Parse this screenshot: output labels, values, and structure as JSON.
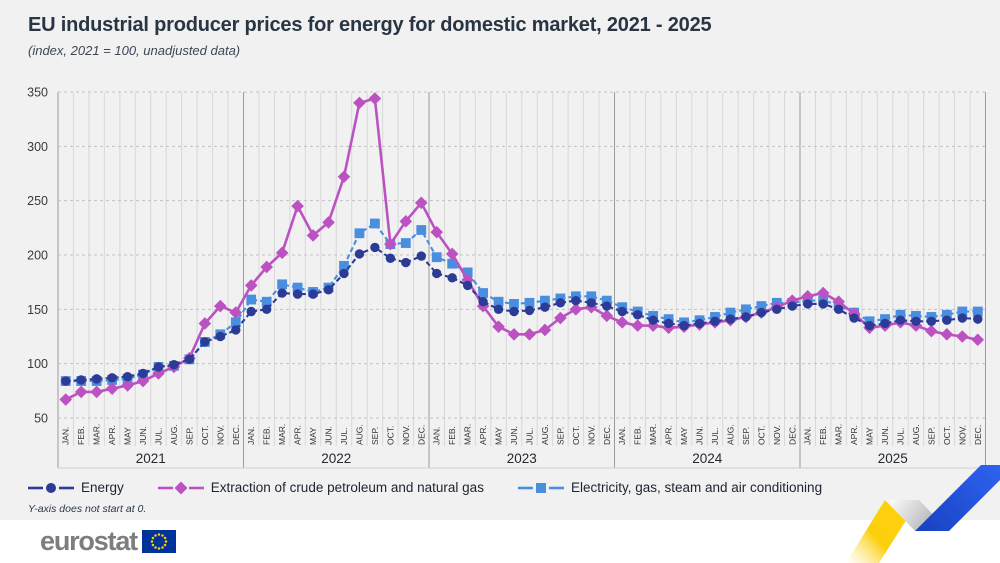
{
  "header": {
    "title": "EU industrial producer prices for energy for domestic market, 2021 - 2025",
    "subtitle": "(index, 2021 = 100, unadjusted data)"
  },
  "chart_data": {
    "type": "line",
    "title": "EU industrial producer prices for energy for domestic market, 2021 - 2025",
    "subtitle": "(index, 2021 = 100, unadjusted data)",
    "ylim": [
      50,
      350
    ],
    "y_ticks": [
      50,
      100,
      150,
      200,
      250,
      300,
      350
    ],
    "grid": true,
    "legend_position": "bottom-left",
    "years": [
      "2021",
      "2022",
      "2023",
      "2024",
      "2025"
    ],
    "month_labels": [
      "JAN.",
      "FEB.",
      "MAR.",
      "APR.",
      "MAY",
      "JUN.",
      "JUL.",
      "AUG.",
      "SEP.",
      "OCT.",
      "NOV.",
      "DEC."
    ],
    "series": [
      {
        "name": "Energy",
        "color": "#2b3b96",
        "marker": "circle",
        "line_style": "dashed",
        "values": [
          84,
          85,
          86,
          87,
          88,
          91,
          97,
          99,
          104,
          120,
          125,
          131,
          148,
          150,
          165,
          164,
          164,
          168,
          183,
          201,
          207,
          197,
          193,
          199,
          183,
          179,
          172,
          157,
          150,
          148,
          149,
          152,
          156,
          158,
          156,
          153,
          148,
          145,
          140,
          137,
          135,
          137,
          139,
          141,
          143,
          147,
          150,
          153,
          155,
          155,
          150,
          142,
          135,
          137,
          140,
          139,
          139,
          140,
          142,
          141
        ]
      },
      {
        "name": "Extraction of crude petroleum and natural gas",
        "color": "#bc52c2",
        "marker": "diamond",
        "line_style": "solid",
        "values": [
          67,
          74,
          74,
          77,
          80,
          84,
          91,
          97,
          105,
          137,
          153,
          147,
          172,
          189,
          202,
          245,
          218,
          230,
          272,
          340,
          344,
          210,
          231,
          248,
          221,
          201,
          177,
          153,
          134,
          127,
          127,
          131,
          142,
          150,
          152,
          144,
          138,
          135,
          135,
          133,
          134,
          136,
          138,
          140,
          143,
          147,
          152,
          158,
          162,
          165,
          157,
          146,
          133,
          135,
          138,
          135,
          130,
          127,
          125,
          122
        ]
      },
      {
        "name": "Electricity, gas, steam and air conditioning",
        "color": "#4a8ee0",
        "marker": "square",
        "line_style": "dashed",
        "values": [
          84,
          84,
          84,
          85,
          86,
          90,
          97,
          98,
          104,
          120,
          127,
          138,
          159,
          157,
          173,
          170,
          166,
          170,
          190,
          220,
          229,
          210,
          211,
          223,
          198,
          192,
          184,
          165,
          157,
          155,
          156,
          158,
          160,
          162,
          162,
          158,
          152,
          148,
          144,
          141,
          138,
          140,
          143,
          147,
          150,
          153,
          156,
          156,
          158,
          158,
          154,
          147,
          139,
          141,
          145,
          144,
          143,
          145,
          148,
          148
        ]
      }
    ]
  },
  "footnote": "Y-axis does not start at 0.",
  "footer": {
    "logo_text": "eurostat"
  },
  "colors": {
    "background": "#f1f1f2",
    "footer_background": "#ffffff",
    "grid_month": "#d8d8d8",
    "grid_year": "#9c9c9c",
    "grid_dashed": "#c2c2c2",
    "axis_text": "#3a3a3a",
    "title_text": "#293542",
    "eu_flag_blue": "#003399",
    "eu_flag_stars": "#ffcc00",
    "ribbon_yellow": "#fdd20f",
    "ribbon_blue": "#2151db"
  }
}
